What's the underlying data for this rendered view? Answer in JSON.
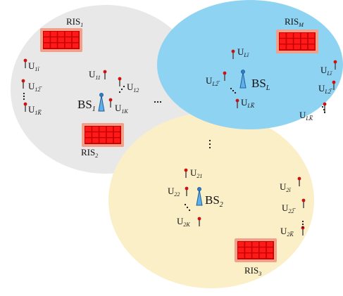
{
  "cells": [
    {
      "id": "cell-1",
      "color": "#e8e8e8"
    },
    {
      "id": "cell-L",
      "color": "#8fd3f2"
    },
    {
      "id": "cell-2",
      "color": "#fbefc8"
    }
  ],
  "base_stations": [
    {
      "id": "bs-1",
      "main": "BS",
      "sub": "1"
    },
    {
      "id": "bs-L",
      "main": "BS",
      "sub": "L"
    },
    {
      "id": "bs-2",
      "main": "BS",
      "sub": "2"
    }
  ],
  "ris": [
    {
      "id": "ris-1",
      "main": "RIS",
      "sub": "1"
    },
    {
      "id": "ris-2",
      "main": "RIS",
      "sub": "2"
    },
    {
      "id": "ris-M",
      "main": "RIS",
      "sub": "M"
    },
    {
      "id": "ris-3",
      "main": "RIS",
      "sub": "3"
    }
  ],
  "users": [
    {
      "main": "U",
      "sub": "11"
    },
    {
      "main": "U",
      "sub": "12"
    },
    {
      "main": "U",
      "sub": "1K"
    },
    {
      "main": "U",
      "sub": "1ī"
    },
    {
      "main": "U",
      "sub": "12̅"
    },
    {
      "main": "U",
      "sub": "1K̅"
    },
    {
      "main": "U",
      "sub": "Lī"
    },
    {
      "main": "U",
      "sub": "L2̅"
    },
    {
      "main": "U",
      "sub": "LK̅"
    },
    {
      "main": "U",
      "sub": "Lī"
    },
    {
      "main": "U",
      "sub": "L2̅"
    },
    {
      "main": "U",
      "sub": "LK̅"
    },
    {
      "main": "U",
      "sub": "21"
    },
    {
      "main": "U",
      "sub": "22"
    },
    {
      "main": "U",
      "sub": "2K"
    },
    {
      "main": "U",
      "sub": "2ī"
    },
    {
      "main": "U",
      "sub": "22̅"
    },
    {
      "main": "U",
      "sub": "2K̅"
    }
  ],
  "ellipsis": "⋯",
  "colors": {
    "ris_fill": "#ff1a1a",
    "ris_frame": "#f2a08a",
    "antenna": "#1f5fa0",
    "user_head": "#cc1111",
    "user_stem": "#555555"
  }
}
